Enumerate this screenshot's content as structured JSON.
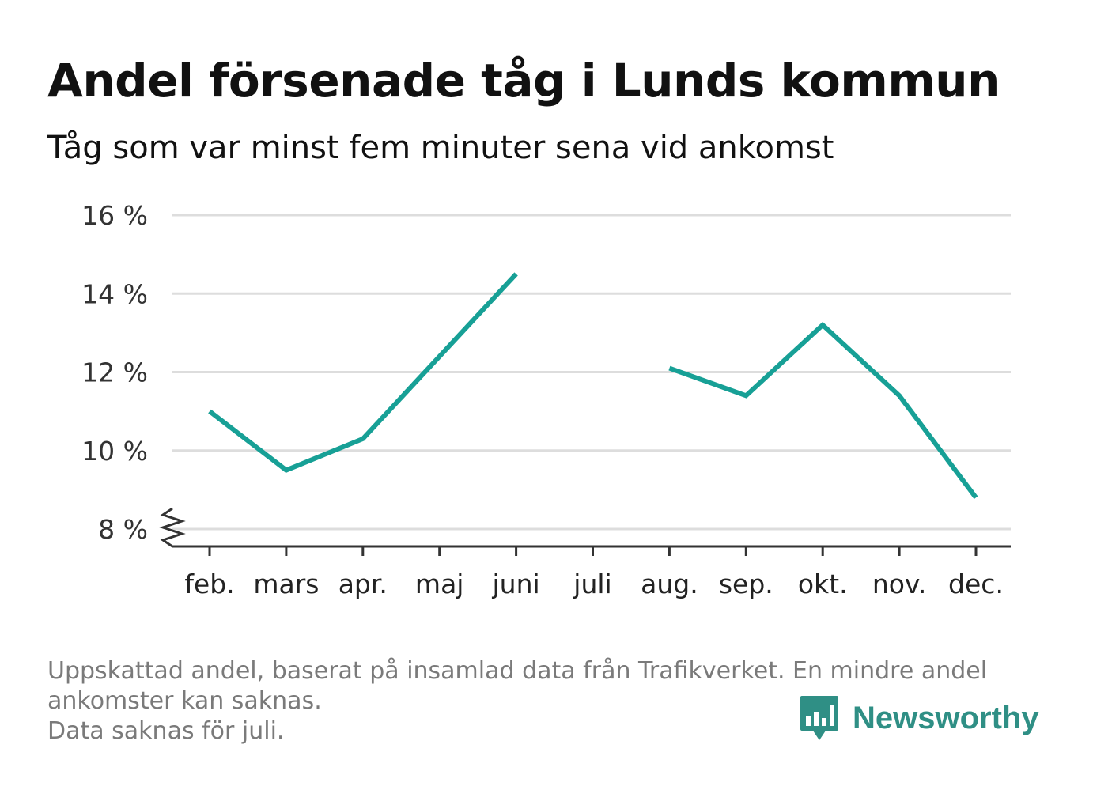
{
  "header": {
    "title": "Andel försenade tåg i Lunds kommun",
    "subtitle": "Tåg som var minst fem minuter sena vid ankomst"
  },
  "footer": {
    "note_line1": "Uppskattad andel, baserat på insamlad data från Trafikverket. En mindre andel",
    "note_line2": "ankomster kan saknas.",
    "note_line3": "Data saknas för juli.",
    "brand": "Newsworthy",
    "brand_color": "#2f8f85"
  },
  "chart_data": {
    "type": "line",
    "title": "Andel försenade tåg i Lunds kommun",
    "subtitle": "Tåg som var minst fem minuter sena vid ankomst",
    "categories": [
      "feb.",
      "mars",
      "apr.",
      "maj",
      "juni",
      "juli",
      "aug.",
      "sep.",
      "okt.",
      "nov.",
      "dec."
    ],
    "series": [
      {
        "color": "#17a096",
        "values": [
          11.0,
          9.5,
          10.3,
          12.4,
          14.5,
          null,
          12.1,
          11.4,
          13.2,
          11.4,
          8.8
        ]
      }
    ],
    "yticks": [
      8,
      10,
      12,
      14,
      16
    ],
    "ytick_labels": [
      "8 %",
      "10 %",
      "12 %",
      "14 %",
      "16 %"
    ],
    "ylim": [
      8,
      16
    ],
    "y_axis_break": true,
    "grid": true,
    "xlabel": "",
    "ylabel": ""
  }
}
